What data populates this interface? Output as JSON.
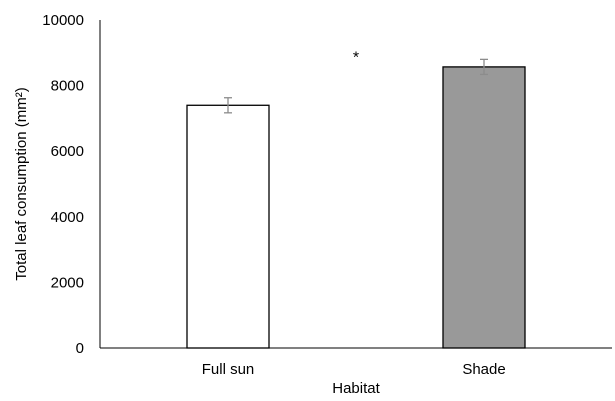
{
  "chart_data": {
    "type": "bar",
    "categories": [
      "Full sun",
      "Shade"
    ],
    "values": [
      7400,
      8570
    ],
    "errors": [
      230,
      230
    ],
    "bar_colors": [
      "#ffffff",
      "#999999"
    ],
    "bar_stroke": "#000000",
    "error_color": "#8c8c8c",
    "ylim": [
      0,
      10000
    ],
    "yticks": [
      0,
      2000,
      4000,
      6000,
      8000,
      10000
    ],
    "ytick_labels": [
      "0",
      "2000",
      "4000",
      "6000",
      "8000",
      "10000"
    ],
    "xlabel": "Habitat",
    "ylabel": "Total leaf consumption (mm²)",
    "annotation": "*",
    "grid": false,
    "legend": "none"
  }
}
